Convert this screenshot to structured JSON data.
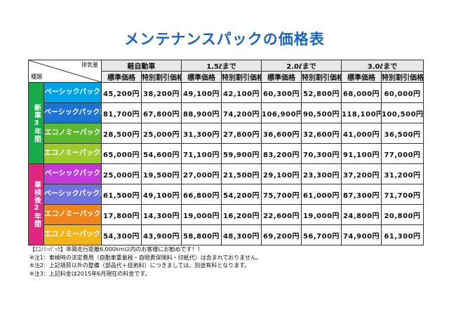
{
  "title": "メンテナンスパックの価格表",
  "header": {
    "corner_top": "排気量",
    "corner_bottom": "種類",
    "groups": [
      "軽自動車",
      "1.5ℓまで",
      "2.0ℓまで",
      "3.0ℓまで"
    ],
    "standard": "標準価格",
    "special": "特別割引価格"
  },
  "sections": [
    {
      "side_label": "新車3年間",
      "rows": [
        {
          "name": "ベーシックパック",
          "color": "#00a3e8",
          "prices": [
            "45,200円",
            "38,200円",
            "49,100円",
            "42,100円",
            "60,300円",
            "52,800円",
            "68,000円",
            "60,000円"
          ]
        },
        {
          "name": "ベーシックパック車検付",
          "color": "#1c73d6",
          "prices": [
            "81,700円",
            "67,800円",
            "88,900円",
            "74,200円",
            "106,900円",
            "90,500円",
            "118,100円",
            "100,500円"
          ]
        },
        {
          "name": "エコノミーパック",
          "color": "#5cb830",
          "prices": [
            "28,500円",
            "25,000円",
            "31,300円",
            "27,800円",
            "36,600円",
            "32,600円",
            "41,000円",
            "36,500円"
          ]
        },
        {
          "name": "エコノミーパック車検付",
          "color": "#9ccb2a",
          "prices": [
            "65,000円",
            "54,600円",
            "71,100円",
            "59,900円",
            "83,200円",
            "70,300円",
            "91,100円",
            "77,000円"
          ]
        }
      ]
    },
    {
      "side_label": "車検後2年間",
      "rows": [
        {
          "name": "ベーシックパック",
          "color": "#c43ad8",
          "prices": [
            "25,000円",
            "19,500円",
            "27,000円",
            "21,500円",
            "29,100円",
            "23,300円",
            "37,200円",
            "31,200円"
          ]
        },
        {
          "name": "ベーシックパック車検付",
          "color": "#6d74e0",
          "prices": [
            "61,500円",
            "49,100円",
            "66,800円",
            "54,200円",
            "75,700円",
            "61,000円",
            "87,300円",
            "71,700円"
          ]
        },
        {
          "name": "エコノミーパック",
          "color": "#f0841c",
          "prices": [
            "17,800円",
            "14,300円",
            "19,000円",
            "16,200円",
            "22,600円",
            "19,000円",
            "24,800円",
            "20,800円"
          ]
        },
        {
          "name": "エコノミーパック車検付",
          "color": "#f4b416",
          "prices": [
            "54,300円",
            "43,900円",
            "58,800円",
            "48,300円",
            "69,200円",
            "56,700円",
            "74,900円",
            "61,300円"
          ]
        }
      ]
    }
  ],
  "notes": [
    "【ｴｺﾉﾐｰﾊﾟｯｸ】年間走行距離6,000km以内のお客様にお勧めです！！",
    "※注1：車検時の法定費用（自動車重量税・自賠責保険料・印紙代）は含まれておりません。",
    "※注2：上記項目以外の整備（部品代＋技術料）につきましては、別途有料となります。",
    "※注3：上記料金は2015年6月現在の料金です。"
  ]
}
